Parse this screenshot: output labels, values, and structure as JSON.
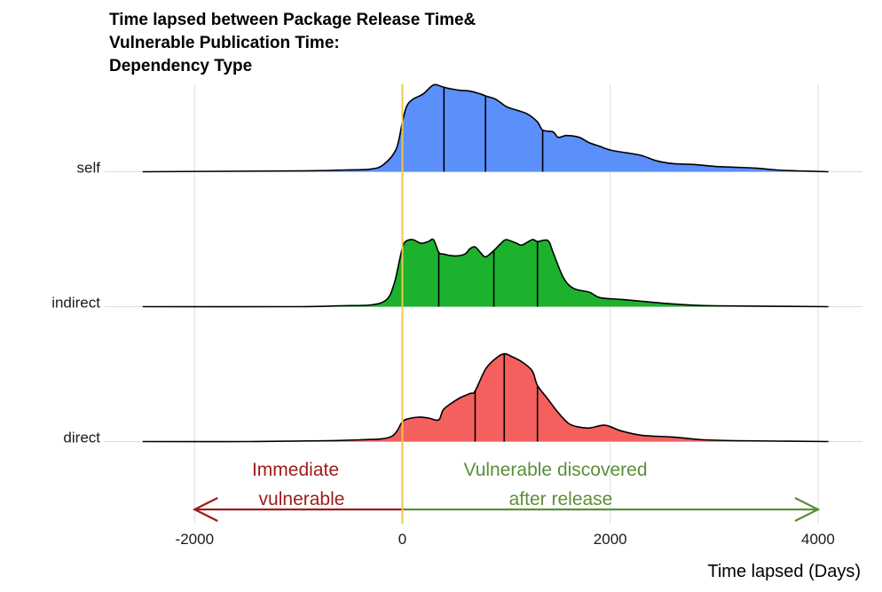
{
  "chart_data": {
    "type": "ridgeline",
    "title_lines": [
      "Time lapsed between Package Release Time&",
      "Vulnerable Publication Time:",
      "Dependency Type"
    ],
    "xlabel": "Time lapsed (Days)",
    "ylabel": "",
    "xlim": [
      -2500,
      4100
    ],
    "xticks": [
      -2000,
      0,
      2000,
      4000
    ],
    "xtick_labels": [
      "-2000",
      "0",
      "2000",
      "4000"
    ],
    "grid": true,
    "reference_line": {
      "x": 0,
      "color": "#f0c64a"
    },
    "series": [
      {
        "name": "self",
        "color": "#5b8ff9",
        "quartiles": [
          400,
          800,
          1350
        ],
        "points": [
          [
            -2500,
            0
          ],
          [
            -1000,
            0.01
          ],
          [
            -550,
            0.02
          ],
          [
            -300,
            0.03
          ],
          [
            -180,
            0.08
          ],
          [
            -60,
            0.25
          ],
          [
            0,
            0.55
          ],
          [
            40,
            0.72
          ],
          [
            100,
            0.8
          ],
          [
            200,
            0.86
          ],
          [
            300,
            0.96
          ],
          [
            380,
            0.94
          ],
          [
            450,
            0.92
          ],
          [
            550,
            0.9
          ],
          [
            650,
            0.89
          ],
          [
            750,
            0.86
          ],
          [
            820,
            0.83
          ],
          [
            900,
            0.8
          ],
          [
            1000,
            0.72
          ],
          [
            1100,
            0.68
          ],
          [
            1200,
            0.64
          ],
          [
            1300,
            0.55
          ],
          [
            1350,
            0.46
          ],
          [
            1450,
            0.44
          ],
          [
            1500,
            0.38
          ],
          [
            1580,
            0.4
          ],
          [
            1700,
            0.38
          ],
          [
            1800,
            0.32
          ],
          [
            1900,
            0.28
          ],
          [
            2000,
            0.24
          ],
          [
            2150,
            0.21
          ],
          [
            2300,
            0.18
          ],
          [
            2450,
            0.12
          ],
          [
            2600,
            0.09
          ],
          [
            2800,
            0.08
          ],
          [
            3000,
            0.06
          ],
          [
            3200,
            0.05
          ],
          [
            3400,
            0.04
          ],
          [
            3600,
            0.02
          ],
          [
            3800,
            0.01
          ],
          [
            4100,
            0
          ]
        ]
      },
      {
        "name": "indirect",
        "color": "#1cb22e",
        "quartiles": [
          350,
          880,
          1300
        ],
        "points": [
          [
            -2500,
            0
          ],
          [
            -1000,
            0
          ],
          [
            -600,
            0.01
          ],
          [
            -300,
            0.02
          ],
          [
            -150,
            0.08
          ],
          [
            -80,
            0.25
          ],
          [
            -30,
            0.5
          ],
          [
            0,
            0.65
          ],
          [
            30,
            0.72
          ],
          [
            100,
            0.74
          ],
          [
            180,
            0.7
          ],
          [
            250,
            0.72
          ],
          [
            300,
            0.74
          ],
          [
            350,
            0.6
          ],
          [
            400,
            0.58
          ],
          [
            500,
            0.56
          ],
          [
            600,
            0.58
          ],
          [
            650,
            0.64
          ],
          [
            700,
            0.66
          ],
          [
            750,
            0.6
          ],
          [
            800,
            0.55
          ],
          [
            880,
            0.62
          ],
          [
            950,
            0.7
          ],
          [
            1000,
            0.74
          ],
          [
            1100,
            0.7
          ],
          [
            1150,
            0.68
          ],
          [
            1250,
            0.74
          ],
          [
            1300,
            0.72
          ],
          [
            1400,
            0.73
          ],
          [
            1450,
            0.6
          ],
          [
            1550,
            0.32
          ],
          [
            1650,
            0.2
          ],
          [
            1800,
            0.16
          ],
          [
            1900,
            0.1
          ],
          [
            2100,
            0.08
          ],
          [
            2300,
            0.06
          ],
          [
            2600,
            0.03
          ],
          [
            3000,
            0.01
          ],
          [
            4100,
            0
          ]
        ]
      },
      {
        "name": "direct",
        "color": "#f4605d",
        "quartiles": [
          700,
          980,
          1300
        ],
        "points": [
          [
            -2500,
            0
          ],
          [
            -1500,
            0
          ],
          [
            -700,
            0.01
          ],
          [
            -400,
            0.02
          ],
          [
            -200,
            0.03
          ],
          [
            -100,
            0.06
          ],
          [
            -50,
            0.12
          ],
          [
            0,
            0.22
          ],
          [
            50,
            0.25
          ],
          [
            150,
            0.27
          ],
          [
            250,
            0.26
          ],
          [
            350,
            0.24
          ],
          [
            400,
            0.36
          ],
          [
            550,
            0.48
          ],
          [
            650,
            0.53
          ],
          [
            700,
            0.56
          ],
          [
            800,
            0.8
          ],
          [
            900,
            0.92
          ],
          [
            980,
            0.97
          ],
          [
            1050,
            0.94
          ],
          [
            1150,
            0.88
          ],
          [
            1250,
            0.78
          ],
          [
            1300,
            0.62
          ],
          [
            1400,
            0.47
          ],
          [
            1500,
            0.32
          ],
          [
            1600,
            0.2
          ],
          [
            1700,
            0.16
          ],
          [
            1800,
            0.15
          ],
          [
            1950,
            0.18
          ],
          [
            2100,
            0.12
          ],
          [
            2300,
            0.07
          ],
          [
            2600,
            0.05
          ],
          [
            2900,
            0.02
          ],
          [
            3200,
            0.01
          ],
          [
            4100,
            0
          ]
        ]
      }
    ],
    "annotations": {
      "left_line1": "Immediate",
      "left_line2": "vulnerable",
      "left_color": "#9e1b1b",
      "right_line1": "Vulnerable discovered",
      "right_line2": "after release",
      "right_color": "#5a8f3a",
      "arrow_left_to": -2000,
      "arrow_right_to": 4000
    }
  }
}
